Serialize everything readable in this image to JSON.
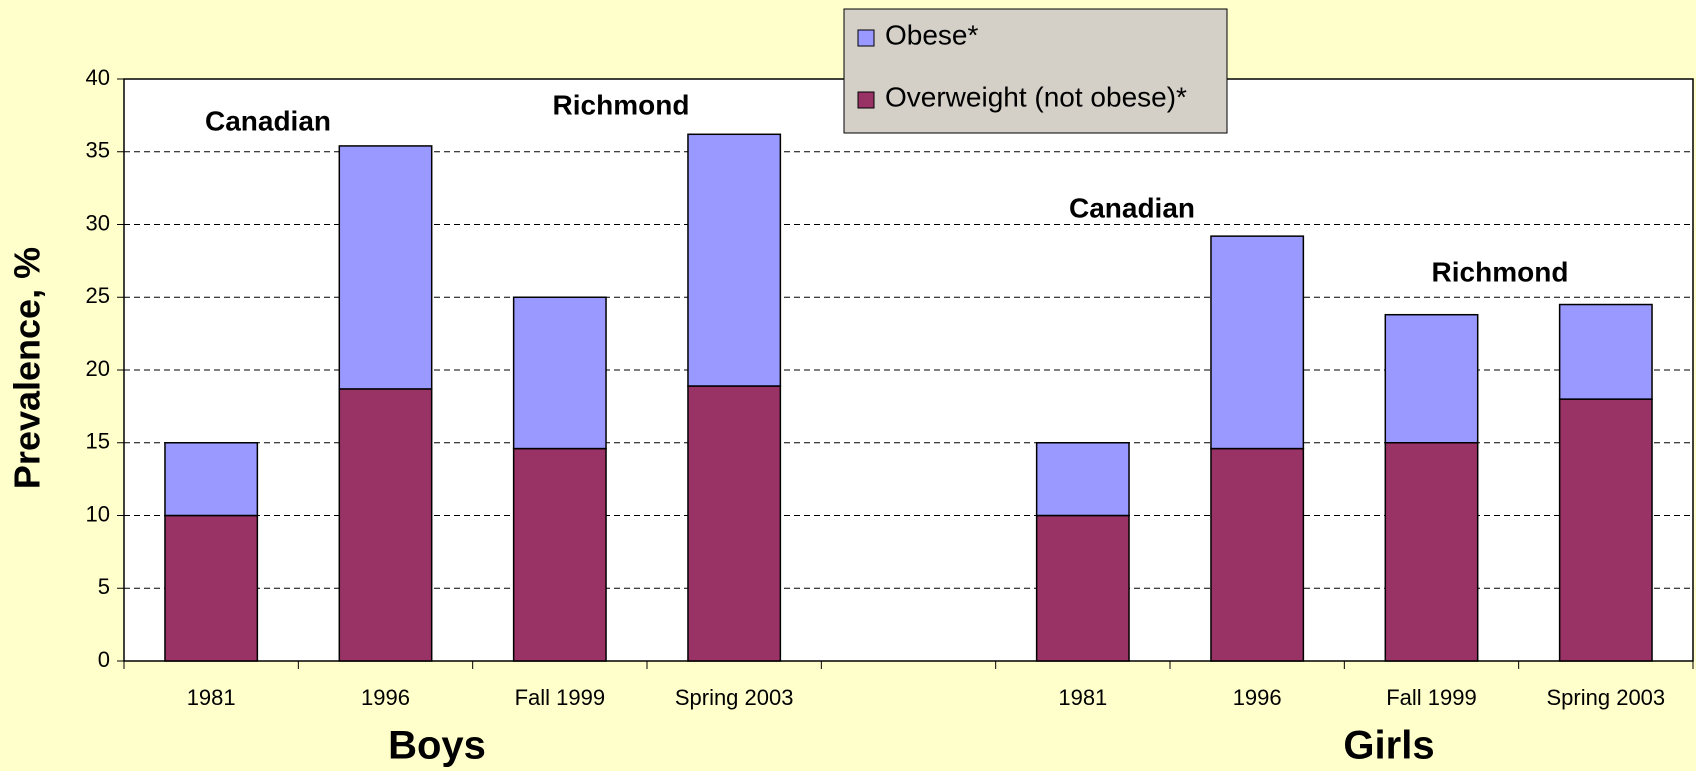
{
  "chart_data": {
    "type": "stacked_bar",
    "categories": [
      "1981",
      "1996",
      "Fall 1999",
      "Spring 2003",
      null,
      "1981",
      "1996",
      "Fall 1999",
      "Spring 2003"
    ],
    "series": [
      {
        "name": "Overweight (not obese)*",
        "color": "#993366",
        "values": [
          10,
          18.7,
          14.6,
          18.9,
          null,
          10,
          14.6,
          15,
          18
        ]
      },
      {
        "name": "Obese*",
        "color": "#9999ff",
        "values": [
          5,
          16.7,
          10.4,
          17.3,
          null,
          5,
          14.6,
          8.8,
          6.5
        ]
      }
    ],
    "y_label": "Prevalence, %",
    "ylim": [
      0,
      40
    ],
    "yticks": [
      0,
      5,
      10,
      15,
      20,
      25,
      30,
      35,
      40
    ],
    "grid": true,
    "annotations": [
      "Canadian",
      "Richmond",
      "Canadian",
      "Richmond"
    ],
    "group_labels": [
      "Boys",
      "Girls"
    ],
    "legend_position": "top"
  }
}
